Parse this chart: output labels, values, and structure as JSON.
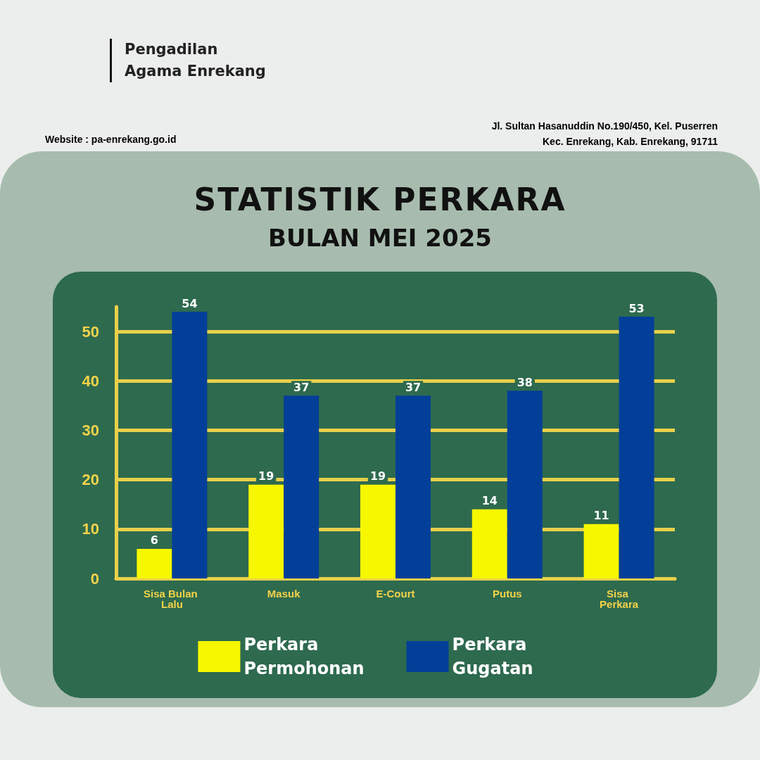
{
  "chart_data": {
    "type": "bar",
    "title": "STATISTIK PERKARA",
    "subtitle": "BULAN MEI 2025",
    "annotations": [
      "Pengadilan Agama Enrekang",
      "Website : pa-enrekang.go.id",
      "Jl. Sultan Hasanuddin No.190/450, Kel. Puserren",
      "Kec. Enrekang, Kab. Enrekang, 91711"
    ],
    "categories": [
      "Sisa Bulan Lalu",
      "Masuk",
      "E-Court",
      "Putus",
      "Sisa Perkara"
    ],
    "series": [
      {
        "name": "Perkara Permohonan",
        "color": "#f7f700",
        "values": [
          6,
          19,
          19,
          14,
          11
        ]
      },
      {
        "name": "Perkara Gugatan",
        "color": "#033f98",
        "values": [
          54,
          37,
          37,
          38,
          53
        ]
      }
    ],
    "ylim": [
      0,
      55
    ],
    "yticks": [
      0,
      10,
      20,
      30,
      40,
      50
    ],
    "grid": "y",
    "legend": "bottom",
    "data_labels": true
  }
}
